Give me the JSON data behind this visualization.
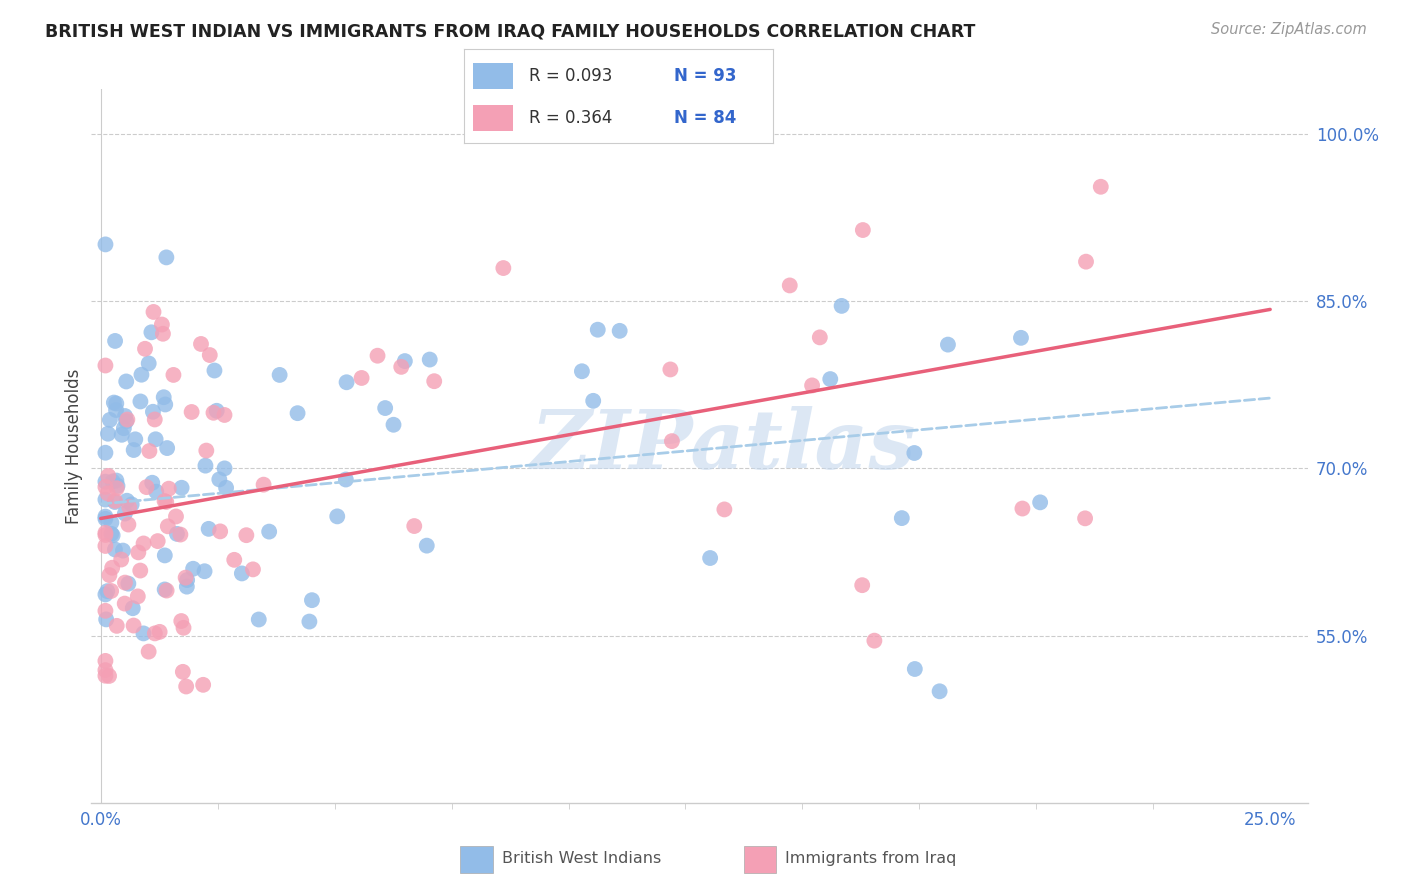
{
  "title": "BRITISH WEST INDIAN VS IMMIGRANTS FROM IRAQ FAMILY HOUSEHOLDS CORRELATION CHART",
  "source": "Source: ZipAtlas.com",
  "ylabel": "Family Households",
  "ytick_labels": [
    "55.0%",
    "70.0%",
    "85.0%",
    "100.0%"
  ],
  "ytick_values": [
    0.55,
    0.7,
    0.85,
    1.0
  ],
  "xmin": -0.002,
  "xmax": 0.258,
  "ymin": 0.4,
  "ymax": 1.04,
  "legend_r1": "R = 0.093",
  "legend_n1": "N = 93",
  "legend_r2": "R = 0.364",
  "legend_n2": "N = 84",
  "color_blue": "#92bce8",
  "color_pink": "#f4a0b5",
  "trendline_blue_color": "#a8cce8",
  "trendline_pink_color": "#e8607a",
  "watermark": "ZIPatlas",
  "watermark_color": "#c5d8ee",
  "grid_color": "#cccccc",
  "spine_color": "#cccccc",
  "tick_color": "#4477cc",
  "title_color": "#222222",
  "source_color": "#999999",
  "ylabel_color": "#444444",
  "legend_text_color": "#333333",
  "legend_n_color": "#3366cc",
  "bottom_legend_text_color": "#555555",
  "blue_intercept": 0.668,
  "blue_slope": 0.38,
  "pink_intercept": 0.655,
  "pink_slope": 0.75
}
